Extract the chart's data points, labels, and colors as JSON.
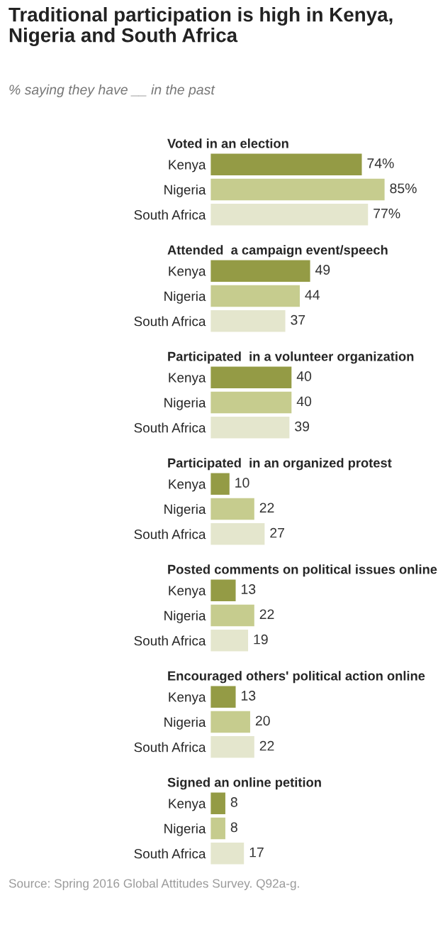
{
  "chart_data": [
    {
      "type": "bar",
      "orientation": "horizontal",
      "title": "Traditional participation is high in Kenya, Nigeria and South Africa",
      "subtitle": "% saying they have __ in the past",
      "xlabel": "Voted in an election",
      "categories": [
        "Kenya",
        "Nigeria",
        "South Africa"
      ],
      "values": [
        74,
        85,
        77
      ],
      "colors": [
        "#949b45",
        "#c6cc8e",
        "#e4e6cd"
      ],
      "value_labels": [
        "74%",
        "85%",
        "77%"
      ],
      "tick_labels": "y"
    },
    {
      "type": "bar",
      "orientation": "horizontal",
      "xlabel": "Attended  a campaign event/speech",
      "categories": [
        "Kenya",
        "Nigeria",
        "South Africa"
      ],
      "values": [
        49,
        44,
        37
      ],
      "colors": [
        "#949b45",
        "#c6cc8e",
        "#e4e6cd"
      ],
      "data_labels": true,
      "tick_labels": "y"
    },
    {
      "type": "bar",
      "orientation": "horizontal",
      "xlabel": "Participated  in a volunteer organization",
      "categories": [
        "Kenya",
        "Nigeria",
        "South Africa"
      ],
      "values": [
        40,
        40,
        39
      ],
      "colors": [
        "#949b45",
        "#c6cc8e",
        "#e4e6cd"
      ],
      "data_labels": true,
      "tick_labels": "y"
    },
    {
      "type": "bar",
      "orientation": "horizontal",
      "xlabel": "Participated  in an organized protest",
      "categories": [
        "Kenya",
        "Nigeria",
        "South Africa"
      ],
      "values": [
        10,
        22,
        27
      ],
      "colors": [
        "#949b45",
        "#c6cc8e",
        "#e4e6cd"
      ],
      "data_labels": true,
      "tick_labels": "y"
    },
    {
      "type": "bar",
      "orientation": "horizontal",
      "xlabel": "Posted comments on political issues online",
      "categories": [
        "Kenya",
        "Nigeria",
        "South Africa"
      ],
      "values": [
        13,
        22,
        19
      ],
      "colors": [
        "#949b45",
        "#c6cc8e",
        "#e4e6cd"
      ],
      "data_labels": true,
      "tick_labels": "y"
    },
    {
      "type": "bar",
      "orientation": "horizontal",
      "xlabel": "Encouraged others' political action online",
      "categories": [
        "Kenya",
        "Nigeria",
        "South Africa"
      ],
      "values": [
        13,
        20,
        22
      ],
      "colors": [
        "#949b45",
        "#c6cc8e",
        "#e4e6cd"
      ],
      "data_labels": true,
      "tick_labels": "y"
    },
    {
      "type": "bar",
      "orientation": "horizontal",
      "xlabel": "Signed an online petition",
      "categories": [
        "Kenya",
        "Nigeria",
        "South Africa"
      ],
      "values": [
        8,
        8,
        17
      ],
      "colors": [
        "#949b45",
        "#c6cc8e",
        "#e4e6cd"
      ],
      "data_labels": true,
      "tick_labels": "y",
      "annotations": [
        "Source: Spring 2016 Global Attitudes Survey. Q92a-g."
      ]
    }
  ]
}
